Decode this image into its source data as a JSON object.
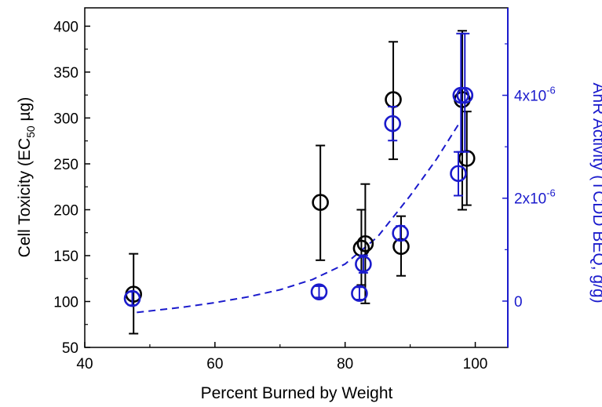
{
  "chart_data": {
    "type": "scatter",
    "title": "",
    "xlabel": "Percent Burned by Weight",
    "ylabel_left": {
      "pre": "Cell Toxicity (EC",
      "sub": "50",
      "post": " µg)"
    },
    "ylabel_right": "AhR Activity  (TCDD BEQ, g/g)",
    "xlim": [
      40,
      105
    ],
    "ylim_left": [
      50,
      420
    ],
    "ylim_right_scaled": [
      -0.9,
      5.7
    ],
    "xticks": [
      {
        "v": 40,
        "label": "40"
      },
      {
        "v": 60,
        "label": "60"
      },
      {
        "v": 80,
        "label": "80"
      },
      {
        "v": 100,
        "label": "100"
      }
    ],
    "yticks_left": [
      {
        "v": 50,
        "label": "50"
      },
      {
        "v": 100,
        "label": "100"
      },
      {
        "v": 150,
        "label": "150"
      },
      {
        "v": 200,
        "label": "200"
      },
      {
        "v": 250,
        "label": "250"
      },
      {
        "v": 300,
        "label": "300"
      },
      {
        "v": 350,
        "label": "350"
      },
      {
        "v": 400,
        "label": "400"
      }
    ],
    "yticks_right": [
      {
        "v": 0,
        "base": "0",
        "exp": ""
      },
      {
        "v": 2,
        "base": "2x10",
        "exp": "-6"
      },
      {
        "v": 4,
        "base": "4x10",
        "exp": "-6"
      }
    ],
    "right_axis_multiplier": 1e-06,
    "colors": {
      "left": "#000000",
      "right": "#1a1acc"
    },
    "series": [
      {
        "axis": "left",
        "points": [
          {
            "x": 47.5,
            "y": 108,
            "lo": 65,
            "hi": 152
          },
          {
            "x": 76.2,
            "y": 208,
            "lo": 145,
            "hi": 270
          },
          {
            "x": 82.5,
            "y": 158,
            "lo": 118,
            "hi": 200
          },
          {
            "x": 83.1,
            "y": 163,
            "lo": 98,
            "hi": 228
          },
          {
            "x": 87.4,
            "y": 320,
            "lo": 255,
            "hi": 383
          },
          {
            "x": 88.6,
            "y": 160,
            "lo": 128,
            "hi": 193
          },
          {
            "x": 98.0,
            "y": 320,
            "lo": 200,
            "hi": 395
          },
          {
            "x": 98.7,
            "y": 256,
            "lo": 205,
            "hi": 307
          }
        ]
      },
      {
        "axis": "right",
        "points": [
          {
            "x": 47.3,
            "y": 0.05,
            "lo": -0.08,
            "hi": 0.18
          },
          {
            "x": 76.0,
            "y": 0.18,
            "lo": 0.07,
            "hi": 0.29
          },
          {
            "x": 82.2,
            "y": 0.15,
            "lo": 0.03,
            "hi": 0.27
          },
          {
            "x": 82.8,
            "y": 0.72,
            "lo": 0.55,
            "hi": 0.89
          },
          {
            "x": 87.3,
            "y": 3.45,
            "lo": 3.12,
            "hi": 3.78
          },
          {
            "x": 88.5,
            "y": 1.32,
            "lo": 1.18,
            "hi": 1.46
          },
          {
            "x": 97.4,
            "y": 2.48,
            "lo": 2.05,
            "hi": 2.9
          },
          {
            "x": 97.8,
            "y": 4.0,
            "lo": 2.9,
            "hi": 5.2
          },
          {
            "x": 98.4,
            "y": 4.0,
            "lo": 2.9,
            "hi": 5.2
          }
        ]
      }
    ],
    "fit": {
      "axis": "right",
      "style": "dashed",
      "x_from": 48,
      "x_to": 97.5,
      "points": [
        [
          48,
          -0.22
        ],
        [
          55,
          -0.12
        ],
        [
          60,
          -0.03
        ],
        [
          65,
          0.08
        ],
        [
          70,
          0.22
        ],
        [
          75,
          0.42
        ],
        [
          80,
          0.72
        ],
        [
          85,
          1.25
        ],
        [
          90,
          2.05
        ],
        [
          94,
          2.75
        ],
        [
          97.5,
          3.45
        ]
      ]
    }
  }
}
